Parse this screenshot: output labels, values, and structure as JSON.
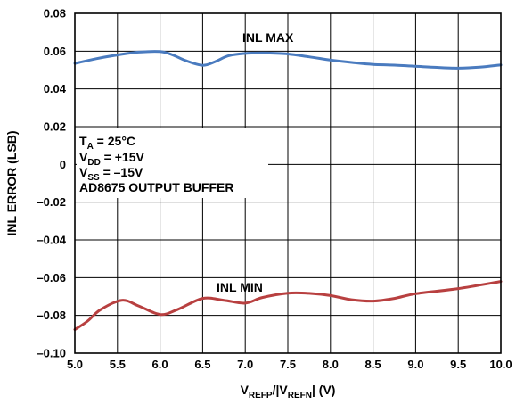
{
  "chart_data": {
    "type": "line",
    "xlabel": {
      "main": "V",
      "sub1": "REFP",
      "mid": "/|V",
      "sub2": "REFN",
      "tail": "| (V)"
    },
    "ylabel": "INL ERROR (LSB)",
    "xlim": [
      5.0,
      10.0
    ],
    "ylim": [
      -0.1,
      0.08
    ],
    "x_ticks": [
      "5.0",
      "5.5",
      "6.0",
      "6.5",
      "7.0",
      "7.5",
      "8.0",
      "8.5",
      "9.0",
      "9.5",
      "10.0"
    ],
    "y_ticks": [
      "0.08",
      "0.06",
      "0.04",
      "0.02",
      "0",
      "–0.02",
      "–0.04",
      "–0.06",
      "–0.08",
      "–0.10"
    ],
    "y_tick_values": [
      0.08,
      0.06,
      0.04,
      0.02,
      0,
      -0.02,
      -0.04,
      -0.06,
      -0.08,
      -0.1
    ],
    "x_tick_values": [
      5.0,
      5.5,
      6.0,
      6.5,
      7.0,
      7.5,
      8.0,
      8.5,
      9.0,
      9.5,
      10.0
    ],
    "grid": true,
    "annotations": {
      "conditions": [
        {
          "main": "T",
          "sub": "A",
          "rest": " = 25°C"
        },
        {
          "main": "V",
          "sub": "DD",
          "rest": " = +15V"
        },
        {
          "main": "V",
          "sub": "SS",
          "rest": " = –15V"
        },
        {
          "main": "AD8675 OUTPUT BUFFER",
          "sub": "",
          "rest": ""
        }
      ]
    },
    "series": [
      {
        "name": "INL MAX",
        "color": "#4a7bbf",
        "x": [
          5.0,
          5.25,
          5.5,
          5.75,
          6.0,
          6.15,
          6.3,
          6.5,
          6.65,
          6.8,
          7.0,
          7.25,
          7.5,
          7.75,
          8.0,
          8.25,
          8.5,
          8.75,
          9.0,
          9.25,
          9.5,
          9.75,
          10.0
        ],
        "values": [
          0.0535,
          0.056,
          0.058,
          0.0595,
          0.0598,
          0.058,
          0.055,
          0.0525,
          0.0545,
          0.0575,
          0.0588,
          0.059,
          0.0585,
          0.057,
          0.0553,
          0.054,
          0.053,
          0.0526,
          0.052,
          0.0514,
          0.051,
          0.0515,
          0.0527
        ]
      },
      {
        "name": "INL MIN",
        "color": "#b84040",
        "x": [
          5.0,
          5.15,
          5.3,
          5.55,
          5.75,
          6.0,
          6.2,
          6.5,
          6.75,
          7.0,
          7.2,
          7.5,
          7.75,
          8.0,
          8.25,
          8.5,
          8.75,
          9.0,
          9.5,
          10.0
        ],
        "values": [
          -0.0875,
          -0.083,
          -0.077,
          -0.072,
          -0.075,
          -0.0795,
          -0.077,
          -0.071,
          -0.072,
          -0.0735,
          -0.0705,
          -0.0682,
          -0.0683,
          -0.0695,
          -0.0717,
          -0.0724,
          -0.071,
          -0.0685,
          -0.0658,
          -0.062
        ]
      }
    ]
  }
}
